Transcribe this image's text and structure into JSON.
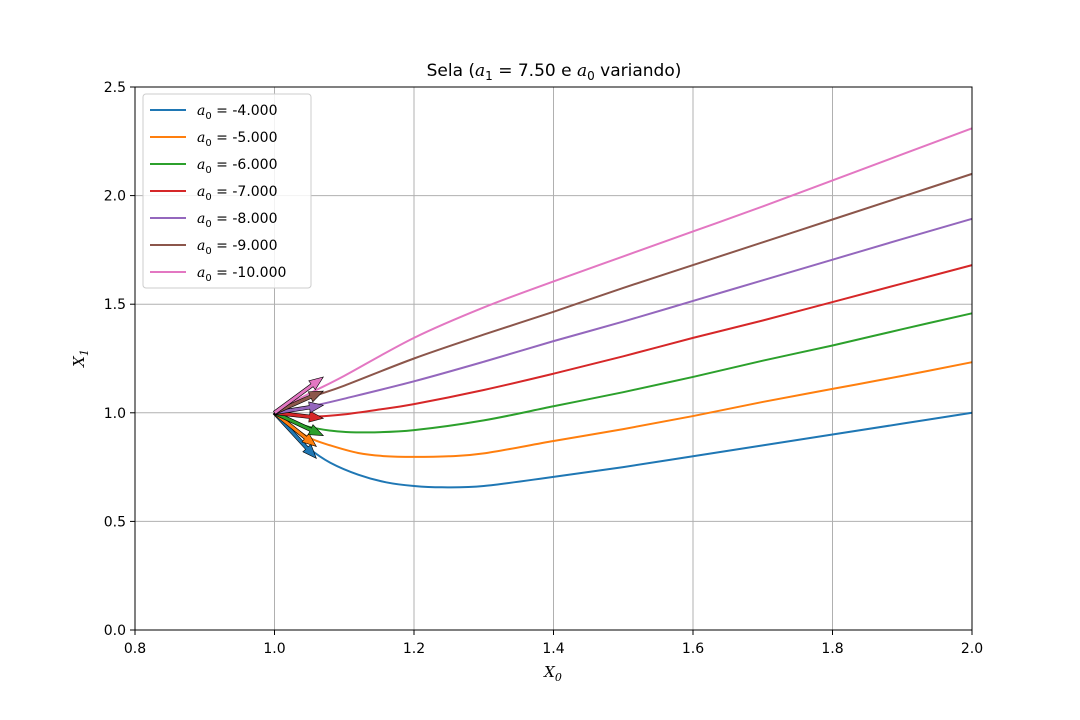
{
  "chart_data": {
    "type": "line",
    "title_prefix": "Sela (",
    "title_a1_var": "a",
    "title_a1_sub": "1",
    "title_a1_rest": " = 7.50 e ",
    "title_a0_var": "a",
    "title_a0_sub": "0",
    "title_suffix": " variando)",
    "xlabel_var": "X",
    "xlabel_sub": "0",
    "ylabel_var": "X",
    "ylabel_sub": "1",
    "xlim": [
      0.8,
      2.0
    ],
    "ylim": [
      0.0,
      2.5
    ],
    "xticks": [
      "0.8",
      "1.0",
      "1.2",
      "1.4",
      "1.6",
      "1.8",
      "2.0"
    ],
    "yticks": [
      "0.0",
      "0.5",
      "1.0",
      "1.5",
      "2.0",
      "2.5"
    ],
    "grid": true,
    "legend_position": "top-left",
    "legend_var": "a",
    "legend_sub": "0",
    "series": [
      {
        "name": " = -4.000",
        "color": "#1f77b4",
        "x": [
          1.0,
          1.02,
          1.05,
          1.08,
          1.12,
          1.16,
          1.2,
          1.24,
          1.3,
          1.4,
          1.5,
          1.6,
          1.7,
          1.8,
          1.9,
          2.0
        ],
        "y": [
          1.0,
          0.925,
          0.835,
          0.77,
          0.715,
          0.68,
          0.663,
          0.657,
          0.663,
          0.705,
          0.75,
          0.8,
          0.85,
          0.9,
          0.95,
          1.0
        ],
        "arrow": [
          1.06,
          0.79
        ]
      },
      {
        "name": " = -5.000",
        "color": "#ff7f0e",
        "x": [
          1.0,
          1.02,
          1.05,
          1.08,
          1.12,
          1.16,
          1.2,
          1.25,
          1.3,
          1.4,
          1.5,
          1.6,
          1.7,
          1.8,
          1.9,
          2.0
        ],
        "y": [
          1.0,
          0.95,
          0.885,
          0.85,
          0.815,
          0.8,
          0.797,
          0.8,
          0.813,
          0.87,
          0.925,
          0.985,
          1.05,
          1.11,
          1.17,
          1.233
        ],
        "arrow": [
          1.06,
          0.845
        ]
      },
      {
        "name": " = -6.000",
        "color": "#2ca02c",
        "x": [
          1.0,
          1.02,
          1.05,
          1.08,
          1.1,
          1.14,
          1.2,
          1.3,
          1.4,
          1.5,
          1.6,
          1.7,
          1.8,
          1.9,
          2.0
        ],
        "y": [
          1.0,
          0.965,
          0.935,
          0.918,
          0.912,
          0.91,
          0.92,
          0.965,
          1.03,
          1.095,
          1.165,
          1.24,
          1.31,
          1.385,
          1.458
        ],
        "arrow": [
          1.07,
          0.895
        ]
      },
      {
        "name": " = -7.000",
        "color": "#d62728",
        "x": [
          1.0,
          1.03,
          1.06,
          1.1,
          1.15,
          1.2,
          1.3,
          1.4,
          1.5,
          1.6,
          1.7,
          1.8,
          1.9,
          2.0
        ],
        "y": [
          1.0,
          0.985,
          0.983,
          0.993,
          1.015,
          1.04,
          1.105,
          1.18,
          1.26,
          1.345,
          1.425,
          1.51,
          1.595,
          1.68
        ],
        "arrow": [
          1.07,
          0.975
        ]
      },
      {
        "name": " = -8.000",
        "color": "#9467bd",
        "x": [
          1.0,
          1.03,
          1.06,
          1.1,
          1.2,
          1.3,
          1.4,
          1.5,
          1.6,
          1.7,
          1.8,
          1.9,
          2.0
        ],
        "y": [
          1.0,
          1.015,
          1.035,
          1.065,
          1.145,
          1.235,
          1.33,
          1.42,
          1.515,
          1.61,
          1.705,
          1.8,
          1.893
        ],
        "arrow": [
          1.07,
          1.035
        ]
      },
      {
        "name": " = -9.000",
        "color": "#8c564b",
        "x": [
          1.0,
          1.03,
          1.06,
          1.1,
          1.2,
          1.3,
          1.4,
          1.5,
          1.6,
          1.7,
          1.8,
          1.9,
          2.0
        ],
        "y": [
          1.0,
          1.04,
          1.08,
          1.125,
          1.25,
          1.36,
          1.465,
          1.575,
          1.68,
          1.785,
          1.89,
          1.995,
          2.1
        ],
        "arrow": [
          1.07,
          1.1
        ]
      },
      {
        "name": " = -10.000",
        "color": "#e377c2",
        "x": [
          1.0,
          1.03,
          1.06,
          1.1,
          1.2,
          1.3,
          1.4,
          1.5,
          1.6,
          1.7,
          1.8,
          1.9,
          2.0
        ],
        "y": [
          1.0,
          1.055,
          1.105,
          1.17,
          1.345,
          1.485,
          1.605,
          1.72,
          1.835,
          1.95,
          2.07,
          2.19,
          2.31
        ],
        "arrow": [
          1.07,
          1.165
        ]
      }
    ]
  }
}
